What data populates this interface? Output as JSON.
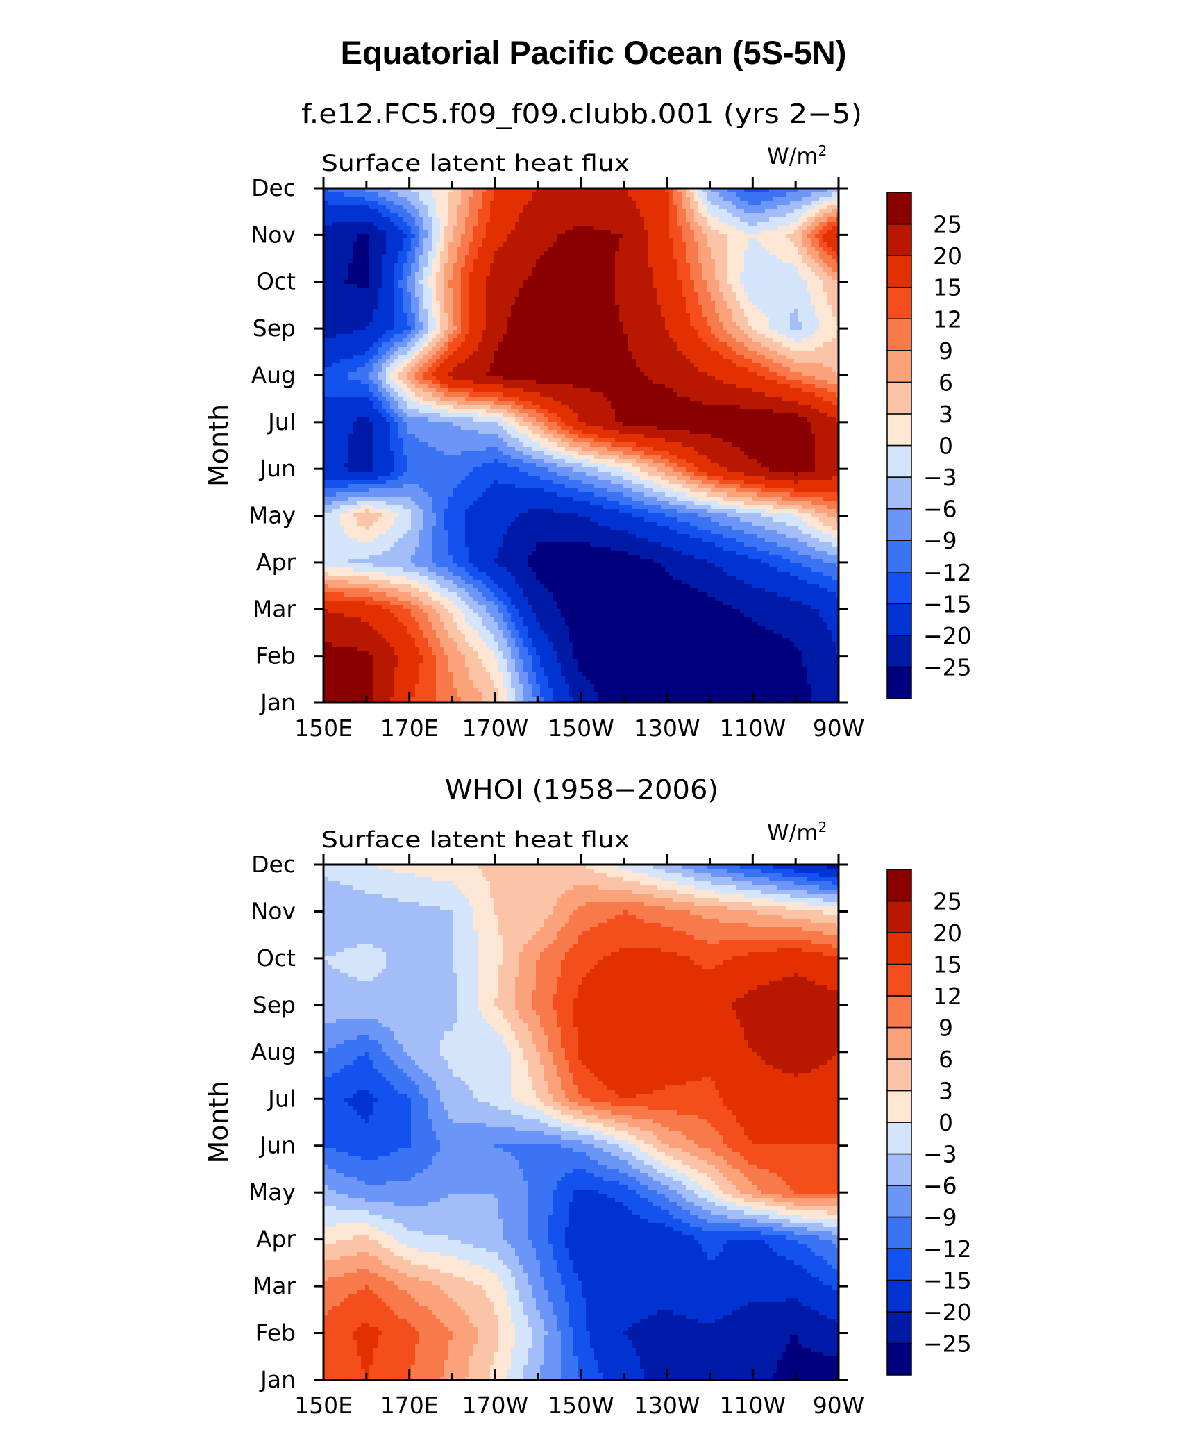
{
  "figure": {
    "title": "Equatorial Pacific Ocean (5S-5N)"
  },
  "panels": [
    {
      "subtitle": "f.e12.FC5.f09_f09.clubb.001 (yrs 2−5)",
      "left_label": "Surface latent heat flux",
      "units_base": "W/m",
      "units_sup": "2"
    },
    {
      "subtitle": "WHOI (1958−2006)",
      "left_label": "Surface latent heat flux",
      "units_base": "W/m",
      "units_sup": "2"
    }
  ],
  "chart_data": [
    {
      "type": "heatmap",
      "ylabel": "Month",
      "x_tick_labels": [
        "150E",
        "170E",
        "170W",
        "150W",
        "130W",
        "110W",
        "90W"
      ],
      "x_longitudes_east": [
        150,
        160,
        170,
        180,
        190,
        200,
        210,
        220,
        230,
        240,
        250,
        260,
        270
      ],
      "y_tick_labels": [
        "Jan",
        "Feb",
        "Mar",
        "Apr",
        "May",
        "Jun",
        "Jul",
        "Aug",
        "Sep",
        "Oct",
        "Nov",
        "Dec"
      ],
      "levels": [
        -25,
        -20,
        -15,
        -12,
        -9,
        -6,
        -3,
        0,
        3,
        6,
        9,
        12,
        15,
        20,
        25
      ],
      "colors": [
        "#00007f",
        "#001aa8",
        "#0033d2",
        "#1452f0",
        "#3a74f5",
        "#6b96f7",
        "#a3bdf9",
        "#d4e5fb",
        "#fde6d4",
        "#fcc4a6",
        "#fba27a",
        "#f87a4b",
        "#f34e1c",
        "#e23000",
        "#b81800",
        "#8a0000"
      ],
      "values": [
        [
          28,
          27,
          15,
          10,
          5,
          -10,
          -22,
          -28,
          -28,
          -28,
          -28,
          -27,
          -22
        ],
        [
          27,
          26,
          18,
          8,
          0,
          -15,
          -27,
          -29,
          -30,
          -30,
          -28,
          -26,
          -20
        ],
        [
          20,
          18,
          12,
          2,
          -8,
          -22,
          -28,
          -30,
          -29,
          -27,
          -24,
          -22,
          -18
        ],
        [
          -2,
          -4,
          -6,
          -12,
          -20,
          -27,
          -29,
          -28,
          -24,
          -20,
          -16,
          -12,
          -8
        ],
        [
          -3,
          6,
          -2,
          -14,
          -18,
          -22,
          -20,
          -16,
          -12,
          -8,
          -4,
          0,
          8
        ],
        [
          -18,
          -22,
          -12,
          -10,
          -14,
          -10,
          -5,
          0,
          8,
          18,
          24,
          28,
          22
        ],
        [
          -16,
          -22,
          -8,
          -6,
          -3,
          8,
          20,
          26,
          28,
          28,
          29,
          28,
          20
        ],
        [
          -14,
          -10,
          8,
          22,
          26,
          28,
          27,
          26,
          24,
          20,
          16,
          10,
          6
        ],
        [
          -22,
          -20,
          -12,
          8,
          24,
          28,
          27,
          25,
          20,
          12,
          3,
          -4,
          3
        ],
        [
          -24,
          -26,
          -8,
          10,
          23,
          26,
          28,
          24,
          18,
          8,
          -3,
          -2,
          6
        ],
        [
          -22,
          -26,
          -14,
          6,
          18,
          24,
          26,
          25,
          16,
          5,
          0,
          4,
          22
        ],
        [
          -12,
          -8,
          -3,
          3,
          15,
          20,
          22,
          20,
          15,
          -6,
          -14,
          -10,
          -6
        ]
      ]
    },
    {
      "type": "heatmap",
      "ylabel": "Month",
      "x_tick_labels": [
        "150E",
        "170E",
        "170W",
        "150W",
        "130W",
        "110W",
        "90W"
      ],
      "x_longitudes_east": [
        150,
        160,
        170,
        180,
        190,
        200,
        210,
        220,
        230,
        240,
        250,
        260,
        270
      ],
      "y_tick_labels": [
        "Jan",
        "Feb",
        "Mar",
        "Apr",
        "May",
        "Jun",
        "Jul",
        "Aug",
        "Sep",
        "Oct",
        "Nov",
        "Dec"
      ],
      "levels": [
        -25,
        -20,
        -15,
        -12,
        -9,
        -6,
        -3,
        0,
        3,
        6,
        9,
        12,
        15,
        20,
        25
      ],
      "colors": [
        "#00007f",
        "#001aa8",
        "#0033d2",
        "#1452f0",
        "#3a74f5",
        "#6b96f7",
        "#a3bdf9",
        "#d4e5fb",
        "#fde6d4",
        "#fcc4a6",
        "#fba27a",
        "#f87a4b",
        "#f34e1c",
        "#e23000",
        "#b81800",
        "#8a0000"
      ],
      "values": [
        [
          12,
          15,
          12,
          8,
          2,
          -6,
          -12,
          -18,
          -22,
          -22,
          -24,
          -26,
          -28
        ],
        [
          13,
          16,
          13,
          9,
          4,
          -4,
          -14,
          -20,
          -22,
          -21,
          -24,
          -25,
          -22
        ],
        [
          10,
          12,
          8,
          5,
          2,
          -8,
          -15,
          -18,
          -18,
          -16,
          -18,
          -18,
          -14
        ],
        [
          2,
          4,
          -2,
          -3,
          -5,
          -10,
          -18,
          -18,
          -18,
          -14,
          -16,
          -12,
          -8
        ],
        [
          -5,
          -8,
          -8,
          -6,
          -6,
          -10,
          -16,
          -14,
          -8,
          0,
          8,
          12,
          12
        ],
        [
          -12,
          -14,
          -12,
          -8,
          -9,
          -10,
          -8,
          -2,
          6,
          10,
          15,
          15,
          15
        ],
        [
          -14,
          -16,
          -12,
          -4,
          -2,
          3,
          12,
          15,
          14,
          14,
          18,
          18,
          18
        ],
        [
          -9,
          -12,
          -5,
          -2,
          -3,
          6,
          16,
          20,
          18,
          16,
          20,
          22,
          20
        ],
        [
          -4,
          -4,
          -3,
          -4,
          3,
          10,
          16,
          20,
          20,
          18,
          22,
          24,
          22
        ],
        [
          -3,
          -2,
          -4,
          -3,
          2,
          9,
          14,
          16,
          16,
          14,
          16,
          18,
          15
        ],
        [
          -6,
          -5,
          -4,
          -3,
          3,
          4,
          10,
          12,
          10,
          8,
          6,
          4,
          2
        ],
        [
          -2,
          0,
          1,
          2,
          4,
          4,
          3,
          -1,
          -5,
          -10,
          -14,
          -18,
          -22
        ]
      ]
    }
  ]
}
